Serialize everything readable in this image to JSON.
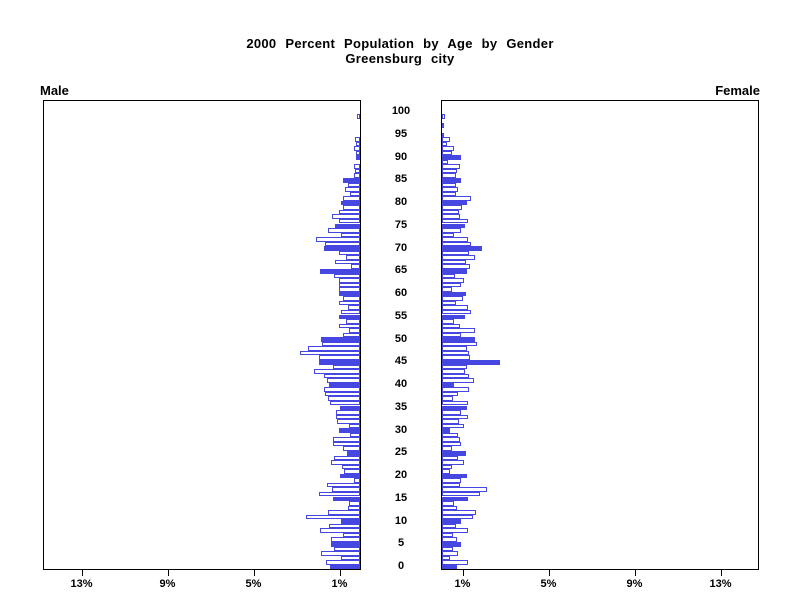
{
  "title": {
    "line1": "2000 Percent Population by Age by Gender",
    "line2": "Greensburg city"
  },
  "panel_labels": {
    "left": "Male",
    "right": "Female"
  },
  "axes": {
    "age_tick_labels": [
      "0",
      "5",
      "10",
      "15",
      "20",
      "25",
      "30",
      "35",
      "40",
      "45",
      "50",
      "55",
      "60",
      "65",
      "70",
      "75",
      "80",
      "85",
      "90",
      "95",
      "100"
    ],
    "pct_tick_values": [
      1,
      5,
      9,
      13
    ],
    "pct_tick_labels": [
      "1%",
      "5%",
      "9%",
      "13%"
    ]
  },
  "colors": {
    "bar_blue": "#4646e0",
    "axis_black": "#000000",
    "background": "#ffffff"
  },
  "chart_data": {
    "type": "bar",
    "subtype": "population-pyramid",
    "title": "2000 Percent Population by Age by Gender",
    "subtitle": "Greensburg city",
    "xlabel_left": "Male",
    "xlabel_right": "Female",
    "x_axis_unit": "percent of population",
    "x_ticks_percent": [
      1,
      5,
      9,
      13
    ],
    "x_max_percent": 14.8,
    "ages": "index of each value = age in years, 0 through 100",
    "fill_rule": "bars at ages divisible by 5 are solid-filled blue; all other ages are hollow with blue outline",
    "series": [
      {
        "name": "Male",
        "values": [
          1.4,
          1.6,
          0.9,
          1.8,
          1.2,
          1.35,
          1.35,
          0.81,
          1.84,
          1.42,
          0.89,
          2.53,
          1.5,
          0.58,
          0.51,
          1.27,
          1.89,
          1.32,
          1.53,
          0.3,
          0.94,
          0.74,
          0.86,
          1.35,
          1.2,
          0.6,
          0.81,
          1.24,
          1.24,
          0.48,
          0.97,
          0.51,
          1.05,
          1.12,
          1.1,
          0.92,
          1.38,
          1.47,
          1.61,
          1.66,
          1.43,
          1.53,
          1.66,
          2.15,
          1.24,
          1.9,
          1.93,
          2.8,
          2.42,
          1.78,
          1.81,
          0.77,
          0.51,
          0.97,
          0.63,
          0.97,
          0.89,
          0.57,
          0.97,
          0.77,
          0.97,
          0.97,
          0.97,
          1.0,
          1.2,
          1.84,
          0.43,
          1.15,
          0.66,
          0.97,
          1.66,
          1.65,
          2.07,
          0.89,
          1.5,
          1.15,
          0.96,
          1.3,
          1.0,
          0.8,
          0.88,
          0.77,
          0.46,
          0.7,
          0.54,
          0.77,
          0.3,
          0.23,
          0.3,
          0.0,
          0.2,
          0.18,
          0.28,
          0.18,
          0.23,
          0.0,
          0.0,
          0.0,
          0.0,
          0.12,
          0.0
        ]
      },
      {
        "name": "Female",
        "values": [
          0.69,
          1.2,
          0.37,
          0.74,
          0.51,
          0.87,
          0.69,
          0.51,
          1.2,
          0.64,
          0.87,
          1.45,
          1.56,
          0.69,
          0.55,
          1.2,
          1.75,
          2.11,
          0.83,
          0.87,
          1.15,
          0.37,
          0.46,
          1.01,
          0.74,
          1.1,
          0.46,
          0.87,
          0.83,
          0.74,
          0.37,
          1.01,
          0.78,
          1.2,
          0.87,
          1.15,
          1.2,
          0.51,
          0.74,
          1.24,
          0.55,
          1.47,
          1.24,
          1.06,
          1.15,
          2.71,
          1.3,
          1.24,
          1.15,
          1.61,
          1.52,
          0.9,
          1.52,
          0.83,
          0.55,
          1.06,
          1.33,
          1.2,
          0.64,
          0.97,
          1.1,
          0.46,
          0.87,
          1.01,
          0.6,
          1.15,
          1.29,
          1.1,
          1.52,
          1.24,
          1.84,
          1.35,
          1.2,
          0.55,
          0.87,
          1.06,
          1.2,
          0.83,
          0.78,
          0.92,
          1.15,
          1.33,
          0.64,
          0.74,
          0.64,
          0.87,
          0.64,
          0.69,
          0.83,
          0.28,
          0.87,
          0.46,
          0.55,
          0.23,
          0.37,
          0.08,
          0.0,
          0.1,
          0.0,
          0.14,
          0.0
        ]
      }
    ],
    "age_tick_labels": [
      "0",
      "5",
      "10",
      "15",
      "20",
      "25",
      "30",
      "35",
      "40",
      "45",
      "50",
      "55",
      "60",
      "65",
      "70",
      "75",
      "80",
      "85",
      "90",
      "95",
      "100"
    ],
    "legend": "none",
    "grid": false
  }
}
